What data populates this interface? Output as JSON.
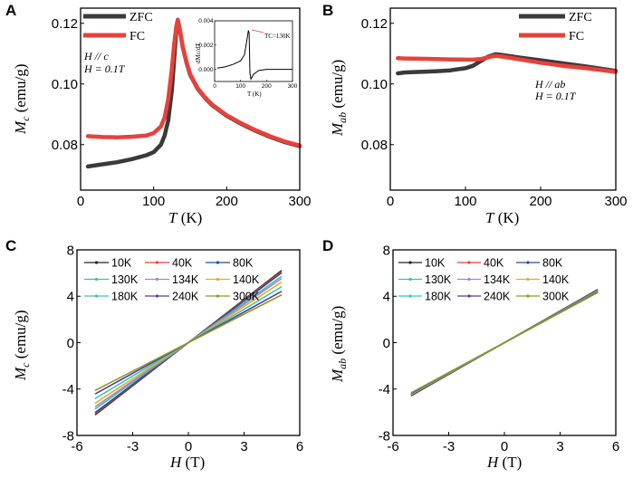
{
  "panels": [
    {
      "letter": "A",
      "xlabel_var": "T",
      "xlabel_unit": " (K)",
      "ylabel_var": "M",
      "ylabel_sub": "c",
      "ylabel_unit": " (emu/g)",
      "annotation_line1": "H // c",
      "annotation_line2": "H = 0.1T"
    },
    {
      "letter": "B",
      "xlabel_var": "T",
      "xlabel_unit": " (K)",
      "ylabel_var": "M",
      "ylabel_sub": "ab",
      "ylabel_unit": " (emu/g)",
      "annotation_line1": "H // ab",
      "annotation_line2": "H = 0.1T"
    },
    {
      "letter": "C",
      "xlabel_var": "H",
      "xlabel_unit": " (T)",
      "ylabel_var": "M",
      "ylabel_sub": "c",
      "ylabel_unit": " (emu/g)"
    },
    {
      "letter": "D",
      "xlabel_var": "H",
      "xlabel_unit": " (T)",
      "ylabel_var": "M",
      "ylabel_sub": "ab",
      "ylabel_unit": " (emu/g)"
    }
  ],
  "chart_data": [
    {
      "panel": "A",
      "type": "line",
      "xlabel": "T (K)",
      "ylabel": "Mc (emu/g)",
      "xlim": [
        0,
        300
      ],
      "ylim": [
        0.065,
        0.125
      ],
      "xticks": [
        0,
        100,
        200,
        300
      ],
      "yticks": [
        0.08,
        0.1,
        0.12
      ],
      "xtick_labels": [
        "0",
        "100",
        "200",
        "300"
      ],
      "ytick_labels": [
        "0.08",
        "0.10",
        "0.12"
      ],
      "legend": [
        "ZFC",
        "FC"
      ],
      "series": [
        {
          "name": "ZFC",
          "color": "#3a3a3a",
          "x": [
            10,
            30,
            50,
            70,
            90,
            100,
            110,
            115,
            120,
            125,
            128,
            131,
            133,
            136,
            140,
            145,
            150,
            160,
            170,
            180,
            200,
            220,
            240,
            260,
            280,
            300
          ],
          "y": [
            0.0728,
            0.0735,
            0.0742,
            0.0752,
            0.0765,
            0.0775,
            0.08,
            0.083,
            0.088,
            0.098,
            0.108,
            0.118,
            0.121,
            0.1175,
            0.112,
            0.107,
            0.103,
            0.0985,
            0.0955,
            0.093,
            0.0895,
            0.0868,
            0.0845,
            0.0825,
            0.0808,
            0.0795
          ]
        },
        {
          "name": "FC",
          "color": "#e8413c",
          "x": [
            10,
            30,
            50,
            70,
            90,
            100,
            110,
            115,
            120,
            125,
            128,
            131,
            133,
            136,
            140,
            145,
            150,
            160,
            170,
            180,
            200,
            220,
            240,
            260,
            280,
            300
          ],
          "y": [
            0.0828,
            0.0825,
            0.0824,
            0.0826,
            0.083,
            0.0838,
            0.086,
            0.089,
            0.095,
            0.105,
            0.113,
            0.119,
            0.1212,
            0.1178,
            0.1122,
            0.1072,
            0.1032,
            0.0987,
            0.0957,
            0.0932,
            0.0897,
            0.087,
            0.0847,
            0.0827,
            0.081,
            0.0797
          ]
        }
      ],
      "inset": {
        "xlabel": "T (K)",
        "ylabel": "dMc/dT",
        "xlim": [
          0,
          300
        ],
        "ylim": [
          -0.001,
          0.004
        ],
        "xticks": [
          0,
          100,
          200,
          300
        ],
        "yticks": [
          0.0,
          0.002,
          0.004
        ],
        "xtick_labels": [
          "0",
          "100",
          "200",
          "300"
        ],
        "ytick_labels": [
          "0.000",
          "0.002",
          "0.004"
        ],
        "annotation": "TC=130K",
        "x": [
          10,
          40,
          70,
          100,
          115,
          125,
          130,
          133,
          136,
          140,
          150,
          170,
          200,
          250,
          300
        ],
        "y": [
          0.0001,
          0.0002,
          0.0004,
          0.0007,
          0.0012,
          0.0025,
          0.0032,
          0.003,
          -0.0003,
          -0.0008,
          -0.0004,
          -0.0001,
          0.0,
          0.0,
          0.0
        ]
      }
    },
    {
      "panel": "B",
      "type": "line",
      "xlabel": "T (K)",
      "ylabel": "Mab (emu/g)",
      "xlim": [
        0,
        300
      ],
      "ylim": [
        0.065,
        0.125
      ],
      "xticks": [
        0,
        100,
        200,
        300
      ],
      "yticks": [
        0.08,
        0.1,
        0.12
      ],
      "xtick_labels": [
        "0",
        "100",
        "200",
        "300"
      ],
      "ytick_labels": [
        "0.08",
        "0.10",
        "0.12"
      ],
      "legend": [
        "ZFC",
        "FC"
      ],
      "series": [
        {
          "name": "ZFC",
          "color": "#3a3a3a",
          "x": [
            10,
            20,
            40,
            60,
            80,
            100,
            110,
            120,
            130,
            140,
            150,
            170,
            200,
            230,
            260,
            300
          ],
          "y": [
            0.1035,
            0.1038,
            0.104,
            0.1042,
            0.1045,
            0.1052,
            0.106,
            0.1075,
            0.109,
            0.1098,
            0.1095,
            0.1088,
            0.1078,
            0.1068,
            0.1058,
            0.1043
          ]
        },
        {
          "name": "FC",
          "color": "#e8413c",
          "x": [
            10,
            20,
            40,
            60,
            80,
            100,
            110,
            120,
            130,
            140,
            150,
            170,
            200,
            230,
            260,
            300
          ],
          "y": [
            0.1085,
            0.1084,
            0.1083,
            0.1082,
            0.1081,
            0.108,
            0.108,
            0.1082,
            0.1088,
            0.1093,
            0.109,
            0.1082,
            0.107,
            0.106,
            0.1052,
            0.104
          ]
        }
      ]
    },
    {
      "panel": "C",
      "type": "line",
      "xlabel": "H (T)",
      "ylabel": "Mc (emu/g)",
      "xlim": [
        -6,
        6
      ],
      "ylim": [
        -8,
        8
      ],
      "xticks": [
        -6,
        -3,
        0,
        3,
        6
      ],
      "yticks": [
        -8,
        -4,
        0,
        4,
        8
      ],
      "xtick_labels": [
        "-6",
        "-3",
        "0",
        "3",
        "6"
      ],
      "ytick_labels": [
        "-8",
        "-4",
        "0",
        "4",
        "8"
      ],
      "legend_columns": 3,
      "series": [
        {
          "name": "10K",
          "color": "#222222",
          "x": [
            -5,
            5
          ],
          "y": [
            -6.2,
            6.2
          ]
        },
        {
          "name": "40K",
          "color": "#e8413c",
          "x": [
            -5,
            5
          ],
          "y": [
            -6.1,
            6.1
          ]
        },
        {
          "name": "80K",
          "color": "#1f4e9c",
          "x": [
            -5,
            5
          ],
          "y": [
            -6.0,
            6.0
          ]
        },
        {
          "name": "130K",
          "color": "#3bbfa3",
          "x": [
            -5,
            5
          ],
          "y": [
            -5.7,
            5.7
          ]
        },
        {
          "name": "134K",
          "color": "#b07fd0",
          "x": [
            -5,
            5
          ],
          "y": [
            -5.5,
            5.5
          ]
        },
        {
          "name": "140K",
          "color": "#e0b020",
          "x": [
            -5,
            5
          ],
          "y": [
            -5.2,
            5.2
          ]
        },
        {
          "name": "180K",
          "color": "#33c6c0",
          "x": [
            -5,
            5
          ],
          "y": [
            -4.8,
            4.8
          ]
        },
        {
          "name": "240K",
          "color": "#5a3b8a",
          "x": [
            -5,
            5
          ],
          "y": [
            -4.4,
            4.4
          ]
        },
        {
          "name": "300K",
          "color": "#8c9a2a",
          "x": [
            -5,
            5
          ],
          "y": [
            -4.1,
            4.1
          ]
        }
      ]
    },
    {
      "panel": "D",
      "type": "line",
      "xlabel": "H (T)",
      "ylabel": "Mab (emu/g)",
      "xlim": [
        -6,
        6
      ],
      "ylim": [
        -8,
        8
      ],
      "xticks": [
        -6,
        -3,
        0,
        3,
        6
      ],
      "yticks": [
        -8,
        -4,
        0,
        4,
        8
      ],
      "xtick_labels": [
        "-6",
        "-3",
        "0",
        "3",
        "6"
      ],
      "ytick_labels": [
        "-8",
        "-4",
        "0",
        "4",
        "8"
      ],
      "legend_columns": 3,
      "series": [
        {
          "name": "10K",
          "color": "#222222",
          "x": [
            -5,
            5
          ],
          "y": [
            -4.55,
            4.55
          ]
        },
        {
          "name": "40K",
          "color": "#e8413c",
          "x": [
            -5,
            5
          ],
          "y": [
            -4.5,
            4.5
          ]
        },
        {
          "name": "80K",
          "color": "#1f4e9c",
          "x": [
            -5,
            5
          ],
          "y": [
            -4.48,
            4.48
          ]
        },
        {
          "name": "130K",
          "color": "#3bbfa3",
          "x": [
            -5,
            5
          ],
          "y": [
            -4.45,
            4.45
          ]
        },
        {
          "name": "134K",
          "color": "#b07fd0",
          "x": [
            -5,
            5
          ],
          "y": [
            -4.42,
            4.42
          ]
        },
        {
          "name": "140K",
          "color": "#e0b020",
          "x": [
            -5,
            5
          ],
          "y": [
            -4.4,
            4.4
          ]
        },
        {
          "name": "180K",
          "color": "#33c6c0",
          "x": [
            -5,
            5
          ],
          "y": [
            -4.38,
            4.38
          ]
        },
        {
          "name": "240K",
          "color": "#5a3b8a",
          "x": [
            -5,
            5
          ],
          "y": [
            -4.35,
            4.35
          ]
        },
        {
          "name": "300K",
          "color": "#8c9a2a",
          "x": [
            -5,
            5
          ],
          "y": [
            -4.3,
            4.3
          ]
        }
      ]
    }
  ]
}
